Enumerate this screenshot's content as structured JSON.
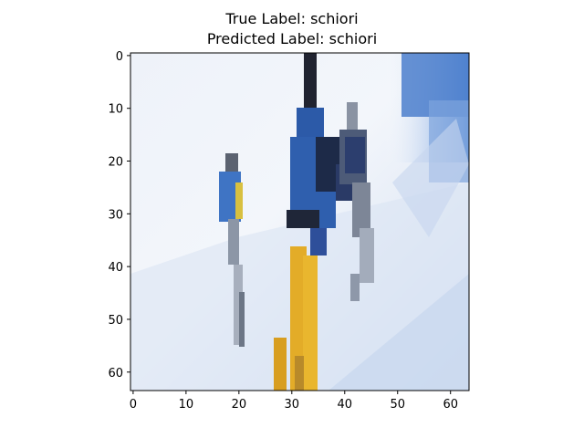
{
  "figure": {
    "title_line_1": "True Label: schiori",
    "title_line_2": "Predicted Label: schiori"
  },
  "axes": {
    "x_ticks": [
      "0",
      "10",
      "20",
      "30",
      "40",
      "50",
      "60"
    ],
    "y_ticks": [
      "0",
      "10",
      "20",
      "30",
      "40",
      "50",
      "60"
    ],
    "x_range": [
      -0.5,
      63.5
    ],
    "y_range": [
      -0.5,
      63.5
    ]
  },
  "image": {
    "description_colors": {
      "sky": "#e8eef7",
      "snow": "#d9e4f3",
      "jacket_blue": "#2f5fae",
      "pants_yellow": "#e7b22b",
      "dark": "#2b2f3a"
    }
  }
}
